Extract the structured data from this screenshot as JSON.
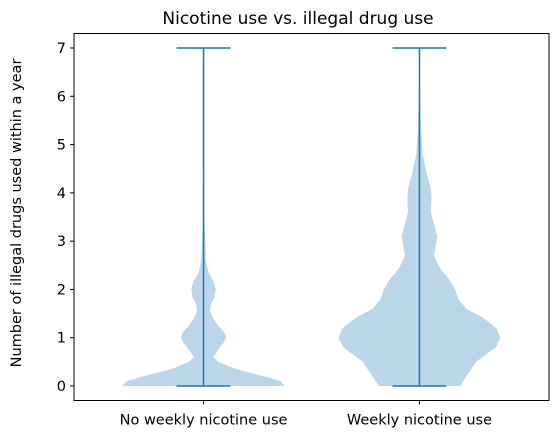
{
  "chart_data": {
    "type": "violin",
    "title": "Nicotine use vs. illegal drug use",
    "xlabel": "",
    "ylabel": "Number of illegal drugs used within a year",
    "categories": [
      "No weekly nicotine use",
      "Weekly nicotine use"
    ],
    "ylim": [
      -0.3,
      7.3
    ],
    "yticks": [
      0,
      1,
      2,
      3,
      4,
      5,
      6,
      7
    ],
    "grid": false,
    "colors": {
      "body": "#1f77b4",
      "body_alpha": 0.3,
      "lines": "#1f77b4"
    },
    "series": [
      {
        "category": "No weekly nicotine use",
        "min": 0,
        "max": 7,
        "density_profile": [
          [
            0,
            1.0
          ],
          [
            0.1,
            0.95
          ],
          [
            0.2,
            0.75
          ],
          [
            0.35,
            0.4
          ],
          [
            0.5,
            0.18
          ],
          [
            0.6,
            0.12
          ],
          [
            0.75,
            0.18
          ],
          [
            0.9,
            0.25
          ],
          [
            1.0,
            0.28
          ],
          [
            1.1,
            0.26
          ],
          [
            1.25,
            0.18
          ],
          [
            1.4,
            0.12
          ],
          [
            1.55,
            0.08
          ],
          [
            1.7,
            0.09
          ],
          [
            1.85,
            0.14
          ],
          [
            2.0,
            0.15
          ],
          [
            2.15,
            0.13
          ],
          [
            2.35,
            0.06
          ],
          [
            2.6,
            0.03
          ],
          [
            3.0,
            0.02
          ],
          [
            3.5,
            0.01
          ],
          [
            4.0,
            0.008
          ],
          [
            5.0,
            0.003
          ],
          [
            6.0,
            0.001
          ],
          [
            7.0,
            0.0
          ]
        ]
      },
      {
        "category": "Weekly nicotine use",
        "min": 0,
        "max": 7,
        "density_profile": [
          [
            0,
            0.5
          ],
          [
            0.2,
            0.58
          ],
          [
            0.5,
            0.7
          ],
          [
            0.8,
            0.94
          ],
          [
            1.0,
            1.0
          ],
          [
            1.2,
            0.95
          ],
          [
            1.4,
            0.8
          ],
          [
            1.6,
            0.58
          ],
          [
            1.8,
            0.48
          ],
          [
            2.0,
            0.44
          ],
          [
            2.2,
            0.37
          ],
          [
            2.45,
            0.25
          ],
          [
            2.7,
            0.18
          ],
          [
            2.9,
            0.2
          ],
          [
            3.1,
            0.22
          ],
          [
            3.35,
            0.18
          ],
          [
            3.6,
            0.14
          ],
          [
            3.9,
            0.15
          ],
          [
            4.1,
            0.14
          ],
          [
            4.4,
            0.09
          ],
          [
            4.8,
            0.04
          ],
          [
            5.3,
            0.02
          ],
          [
            6.0,
            0.008
          ],
          [
            6.6,
            0.003
          ],
          [
            7.0,
            0.0
          ]
        ]
      }
    ]
  }
}
